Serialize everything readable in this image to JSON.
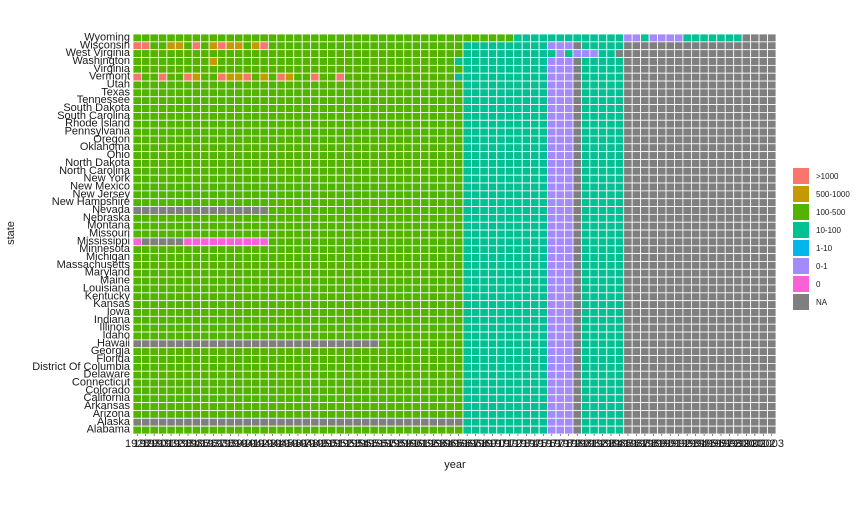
{
  "chart_data": {
    "type": "heatmap",
    "xlabel": "year",
    "ylabel": "state",
    "years": [
      "1928",
      "1929",
      "1930",
      "1931",
      "1932",
      "1933",
      "1934",
      "1935",
      "1936",
      "1937",
      "1938",
      "1939",
      "1940",
      "1941",
      "1942",
      "1943",
      "1944",
      "1945",
      "1946",
      "1947",
      "1948",
      "1949",
      "1950",
      "1951",
      "1952",
      "1953",
      "1954",
      "1955",
      "1956",
      "1957",
      "1958",
      "1959",
      "1960",
      "1961",
      "1962",
      "1963",
      "1964",
      "1965",
      "1966",
      "1967",
      "1968",
      "1969",
      "1970",
      "1971",
      "1972",
      "1973",
      "1974",
      "1975",
      "1976",
      "1977",
      "1978",
      "1979",
      "1980",
      "1981",
      "1982",
      "1983",
      "1984",
      "1985",
      "1986",
      "1987",
      "1988",
      "1989",
      "1990",
      "1991",
      "1992",
      "1993",
      "1994",
      "1995",
      "1996",
      "1997",
      "1998",
      "1999",
      "2000",
      "2001",
      "2002",
      "2003"
    ],
    "states": [
      "Wyoming",
      "Wisconsin",
      "West Virginia",
      "Washington",
      "Virginia",
      "Vermont",
      "Utah",
      "Texas",
      "Tennessee",
      "South Dakota",
      "South Carolina",
      "Rhode Island",
      "Pennsylvania",
      "Oregon",
      "Oklahoma",
      "Ohio",
      "North Dakota",
      "North Carolina",
      "New York",
      "New Mexico",
      "New Jersey",
      "New Hampshire",
      "Nevada",
      "Nebraska",
      "Montana",
      "Missouri",
      "Mississippi",
      "Minnesota",
      "Michigan",
      "Massachusetts",
      "Maryland",
      "Maine",
      "Louisiana",
      "Kentucky",
      "Kansas",
      "Iowa",
      "Indiana",
      "Illinois",
      "Idaho",
      "Hawaii",
      "Georgia",
      "Florida",
      "District Of Columbia",
      "Delaware",
      "Connecticut",
      "Colorado",
      "California",
      "Arkansas",
      "Arizona",
      "Alaska",
      "Alabama"
    ],
    "legend": {
      "categories": [
        ">1000",
        "500-1000",
        "100-500",
        "10-100",
        "1-10",
        "0-1",
        "0",
        "NA"
      ],
      "colors": [
        "#f8766d",
        "#c49a00",
        "#53b400",
        "#00c094",
        "#00b6eb",
        "#a58aff",
        "#fb61d7",
        "#7f7f7f"
      ]
    },
    "grid": false,
    "legend_position": "right",
    "note_cells": "Category codes per cell: 0='>1000',1='500-1000',2='100-500',3='10-100',4='1-10',5='0-1',6='0',7='NA'. Each row string below is a state's sequence across the 76 years in order.",
    "cells": [
      "2222222222222222222222222222222222222222222223333333333333553555533333337777",
      "0022112021011210222222222222222222222223333333333555733333777777777777777777",
      "2222222222222222222222222222222222222223333333333353555337777777777777777777",
      "2222222221222222222222222222222222222233333333333555733333777777777777777777",
      "2222222222222222222222222222222222222223333333333555733333777777777777777777",
      "0220220122011021201220220222222222222233333333333555733333777777777777777777",
      "2222222222222222222222222222222222222223333333333555733333777777777777777777",
      "2222222222222222222222222222222222222223333333333555733333777777777777777777",
      "2222222222222222222222222222222222222223333333333555733333777777777777777777",
      "2222222222222222222222222222222222222223333333333555733333777777777777777777",
      "2222222222222222222222222222222222222223333333333555733333777777777777777777",
      "2222222222222222222222222222222222222223333333333555733333777777777777777777",
      "2222222222222222222222222222222222222223333333333555733333777777777777777777",
      "2222222222222222222222222222222222222223333333333555733333777777777777777777",
      "2222222222222222222222222222222222222223333333333555733333777777777777777777",
      "2222222222222222222222222222222222222223333333333555733333777777777777777777",
      "2222222222222222222222222222222222222223333333333555733333777777777777777777",
      "2222222222222222222222222222222222222223333333333555733333777777777777777777",
      "2222222222222222222222222222222222222223333333333555733333777777777777777777",
      "2222222222222222222222222222222222222223333333333555733333777777777777777777",
      "2222222222222222222222222222222222222223333333333555733333777777777777777777",
      "2222222222222222222222222222222222222223333333333555733333777777777777777777",
      "7777777777777777222222222222222222222223333333333555733333777777777777777777",
      "2222222222222222222222222222222222222223333333333555733333777777777777777777",
      "2222222222222222222222222222222222222223333333333555733333777777777777777777",
      "2222222222222222222222222222222222222223333333333555733333777777777777777777",
      "6777776666666666222222222222222222222223333333333555733333777777777777777777",
      "2222222222222222222222222222222222222223333333333555733333777777777777777777",
      "2222222222222222222222222222222222222223333333333555733333777777777777777777",
      "2222222222222222222222222222222222222223333333333555733333777777777777777777",
      "2222222222222222222222222222222222222223333333333555733333777777777777777777",
      "2222222222222222222222222222222222222223333333333555733333777777777777777777",
      "2222222222222222222222222222222222222223333333333555733333777777777777777777",
      "2222222222222222222222222222222222222223333333333555733333777777777777777777",
      "2222222222222222222222222222222222222223333333333555733333777777777777777777",
      "2222222222222222222222222222222222222223333333333555733333777777777777777777",
      "2222222222222222222222222222222222222223333333333555733333777777777777777777",
      "2222222222222222222222222222222222222223333333333555733333777777777777777777",
      "2222222222222222222222222222222222222223333333333555733333777777777777777777",
      "7777777777777777777777777777722222222223333333333555733333777777777777777777",
      "2222222222222222222222222222222222222223333333333555733333777777777777777777",
      "2222222222222222222222222222222222222223333333333555733333777777777777777777",
      "2222222222222222222222222222222222222223333333333555733333777777777777777777",
      "2222222222222222222222222222222222222223333333333555733333777777777777777777",
      "2222222222222222222222222222222222222223333333333555733333777777777777777777",
      "2222222222222222222222222222222222222223333333333555733333777777777777777777",
      "2222222222222222222222222222222222222223333333333555733333777777777777777777",
      "2222222222222222222222222222222222222223333333333555733333777777777777777777",
      "2222222222222222222222222222222222222223333333333555733333777777777777777777",
      "7777777777777777777777777777777777777773333333333555733333777777777777777777",
      "2222222222222222222222222222222222222223333333333555733333777777777777777777"
    ]
  }
}
